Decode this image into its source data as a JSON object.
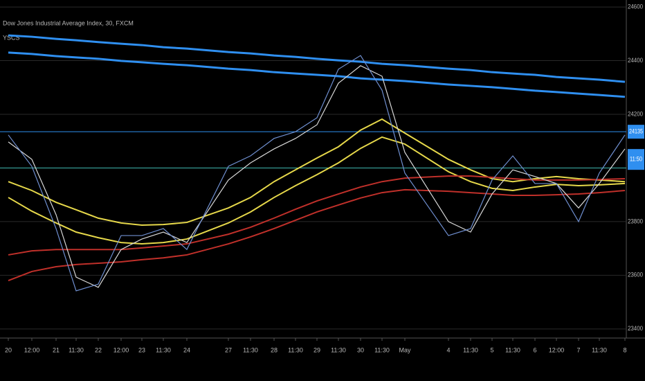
{
  "chart_data": {
    "type": "line",
    "title": "Dow Jones Industrial Average Index, 30, FXCM",
    "indicator": "YSCS",
    "categories": [
      "20",
      "12:00",
      "21",
      "11:30",
      "22",
      "12:00",
      "23",
      "11:30",
      "24",
      "27",
      "11:30",
      "28",
      "11:30",
      "29",
      "11:30",
      "30",
      "11:30",
      "May",
      "4",
      "11:30",
      "5",
      "11:30",
      "6",
      "12:00",
      "7",
      "11:30",
      "8"
    ],
    "ylim": [
      23366,
      24626
    ],
    "yticks": [
      23400,
      23600,
      23800,
      24000,
      24200,
      24400,
      24600
    ],
    "grid": true,
    "series": [
      {
        "color": "#2f8ff0",
        "values": [
          24494,
          24489,
          24481,
          24476,
          24469,
          24463,
          24458,
          24450,
          24445,
          24432,
          24427,
          24419,
          24414,
          24407,
          24401,
          24396,
          24388,
          24383,
          24370,
          24365,
          24357,
          24352,
          24347,
          24339,
          24334,
          24329,
          24321
        ]
      },
      {
        "color": "#2f8ff0",
        "values": [
          24430,
          24425,
          24417,
          24412,
          24407,
          24399,
          24394,
          24388,
          24383,
          24370,
          24365,
          24357,
          24352,
          24347,
          24342,
          24334,
          24329,
          24324,
          24311,
          24306,
          24301,
          24295,
          24288,
          24283,
          24277,
          24272,
          24265
        ]
      },
      {
        "color": "#e6d84a",
        "values": [
          23949,
          23916,
          23872,
          23844,
          23813,
          23795,
          23787,
          23789,
          23797,
          23851,
          23890,
          23949,
          23993,
          24037,
          24079,
          24141,
          24182,
          24130,
          24032,
          23993,
          23960,
          23949,
          23960,
          23968,
          23960,
          23955,
          23949
        ]
      },
      {
        "color": "#e6d84a",
        "values": [
          23890,
          23839,
          23795,
          23761,
          23740,
          23722,
          23717,
          23722,
          23735,
          23795,
          23836,
          23890,
          23934,
          23975,
          24019,
          24073,
          24115,
          24089,
          23986,
          23949,
          23924,
          23916,
          23929,
          23939,
          23934,
          23937,
          23942
        ]
      },
      {
        "color": "#c0302a",
        "values": [
          23676,
          23691,
          23696,
          23696,
          23696,
          23696,
          23702,
          23709,
          23717,
          23753,
          23779,
          23813,
          23846,
          23877,
          23903,
          23929,
          23949,
          23962,
          23970,
          23970,
          23965,
          23960,
          23955,
          23955,
          23955,
          23957,
          23960
        ]
      },
      {
        "color": "#c0302a",
        "values": [
          23580,
          23614,
          23632,
          23640,
          23645,
          23650,
          23658,
          23665,
          23676,
          23717,
          23743,
          23774,
          23805,
          23836,
          23862,
          23888,
          23908,
          23919,
          23913,
          23908,
          23903,
          23898,
          23898,
          23900,
          23903,
          23908,
          23916
        ]
      },
      {
        "color": "#d8d8d8",
        "values": [
          24097,
          24032,
          23826,
          23593,
          23555,
          23696,
          23735,
          23761,
          23722,
          23955,
          24019,
          24071,
          24110,
          24161,
          24316,
          24381,
          24342,
          24058,
          23800,
          23761,
          23903,
          23993,
          23968,
          23942,
          23851,
          23942,
          24071
        ]
      },
      {
        "color": "#6f8fd0",
        "values": [
          24123,
          24006,
          23774,
          23542,
          23567,
          23748,
          23748,
          23774,
          23696,
          24006,
          24045,
          24110,
          24135,
          24187,
          24368,
          24419,
          24290,
          23981,
          23748,
          23774,
          23955,
          24045,
          23942,
          23942,
          23800,
          23981,
          24123
        ]
      }
    ],
    "hlines": [
      {
        "value": 24135,
        "label": "24135",
        "color": "#2f8ff0"
      },
      {
        "value": 24000,
        "color": "#3fb8b0"
      }
    ],
    "countdown": "11:50"
  }
}
